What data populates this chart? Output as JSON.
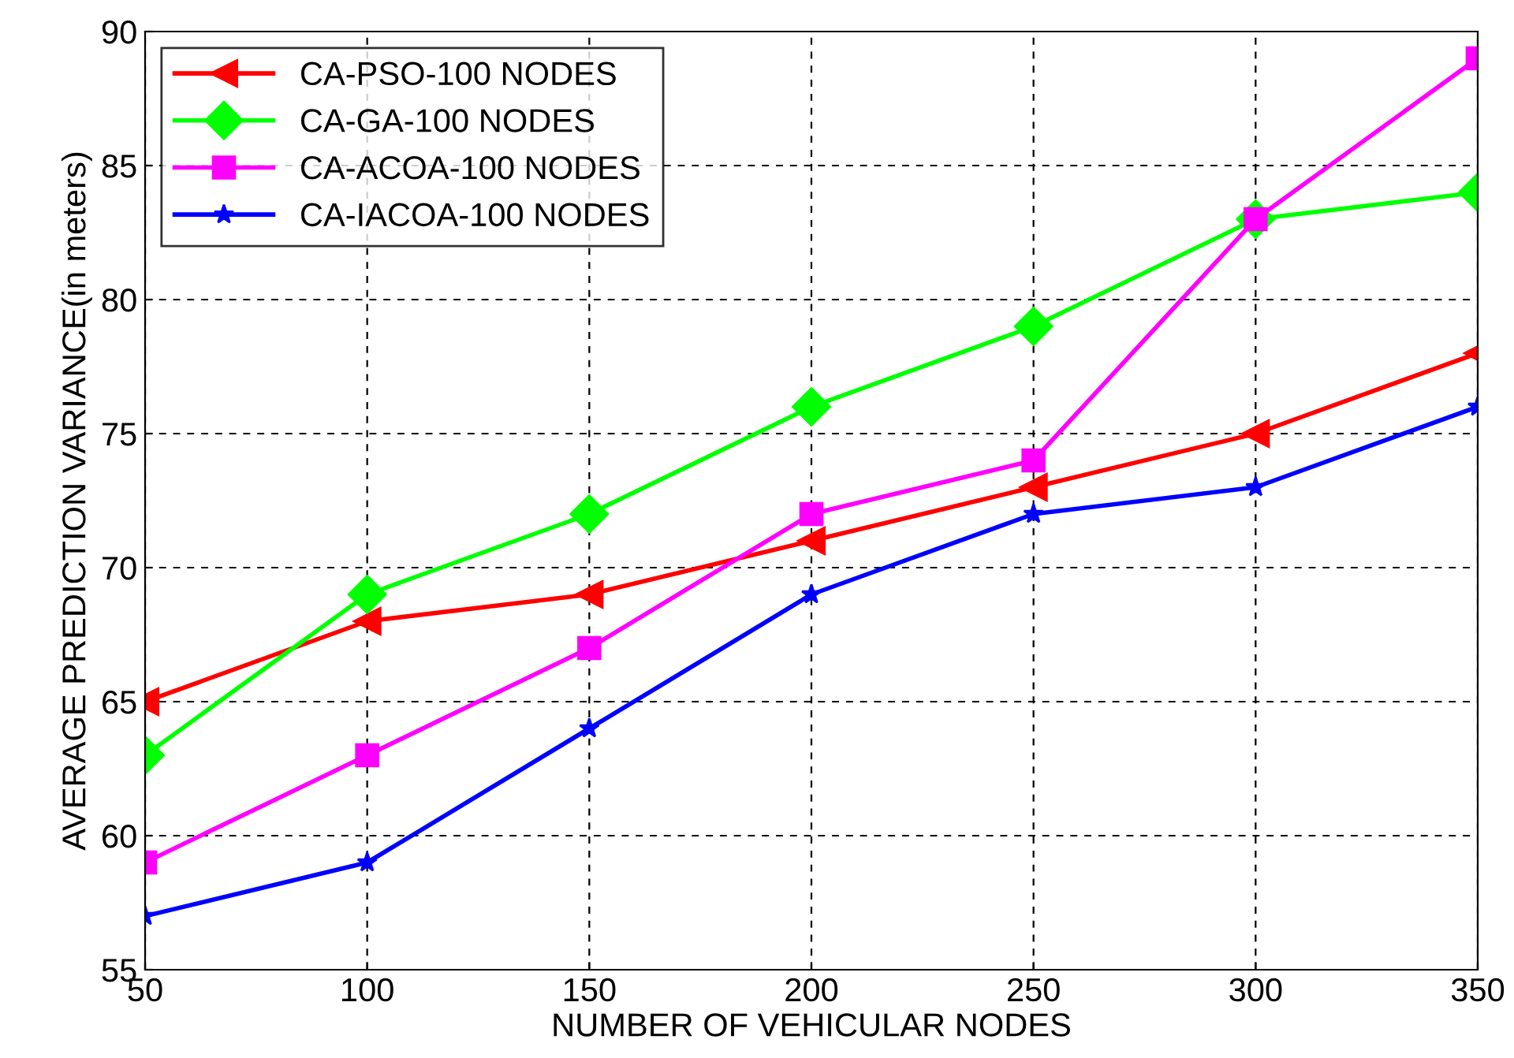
{
  "chart_data": {
    "type": "line",
    "xlabel": "NUMBER OF VEHICULAR NODES",
    "ylabel": "AVERAGE PREDICTION VARIANCE(in meters)",
    "x": [
      50,
      100,
      150,
      200,
      250,
      300,
      350
    ],
    "series": [
      {
        "name": "CA-PSO-100 NODES",
        "color": "#ff0000",
        "marker": "triangle",
        "values": [
          65,
          68,
          69,
          71,
          73,
          75,
          78
        ]
      },
      {
        "name": "CA-GA-100 NODES",
        "color": "#00ff00",
        "marker": "diamond",
        "values": [
          63,
          69,
          72,
          76,
          79,
          83,
          84
        ]
      },
      {
        "name": "CA-ACOA-100 NODES",
        "color": "#ff00ff",
        "marker": "square",
        "values": [
          59,
          63,
          67,
          72,
          74,
          83,
          89
        ]
      },
      {
        "name": "CA-IACOA-100 NODES",
        "color": "#0000ff",
        "marker": "star",
        "values": [
          57,
          59,
          64,
          69,
          72,
          73,
          76
        ]
      }
    ],
    "xlim": [
      50,
      350
    ],
    "xticks": [
      50,
      100,
      150,
      200,
      250,
      300,
      350
    ],
    "ylim": [
      55,
      90
    ],
    "yticks": [
      55,
      60,
      65,
      70,
      75,
      80,
      85,
      90
    ],
    "grid": true,
    "legend": "top left",
    "line_style": "solid"
  }
}
